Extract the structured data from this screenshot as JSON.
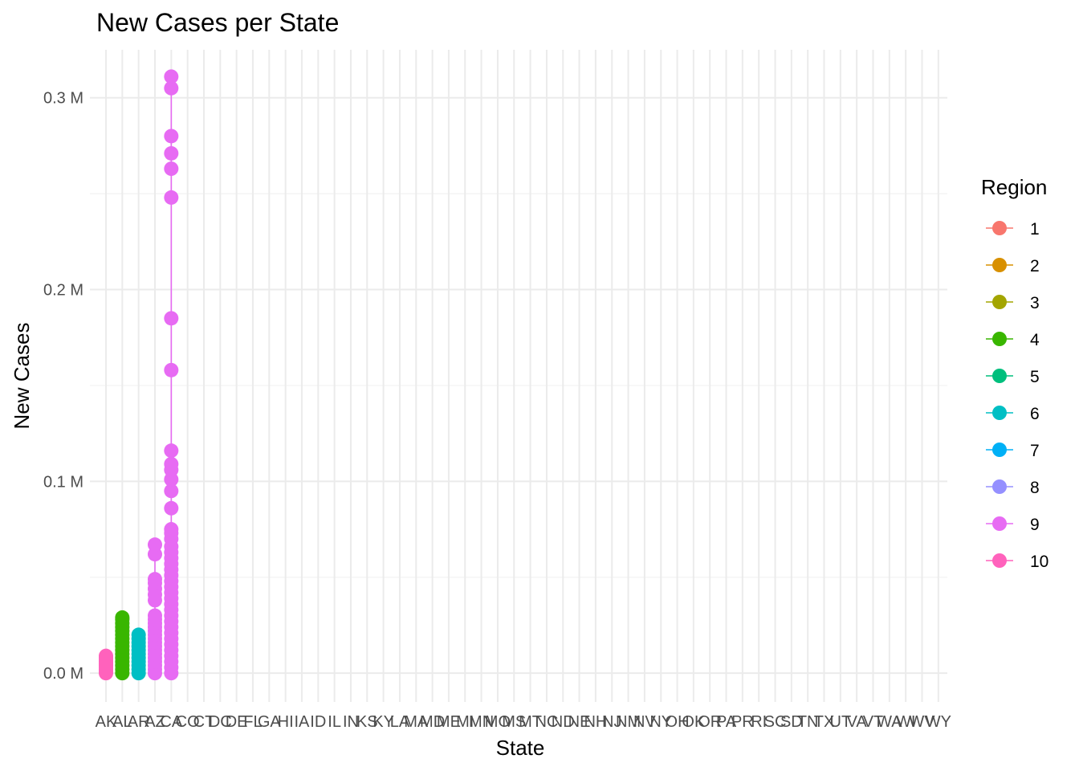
{
  "chart_data": {
    "type": "scatter",
    "title": "New Cases per State",
    "xlabel": "State",
    "ylabel": "New Cases",
    "categories": [
      "AK",
      "AL",
      "AR",
      "AZ",
      "CA",
      "CO",
      "CT",
      "DC",
      "DE",
      "FL",
      "GA",
      "HI",
      "IA",
      "ID",
      "IL",
      "IN",
      "KS",
      "KY",
      "LA",
      "MA",
      "MD",
      "ME",
      "MI",
      "MN",
      "MO",
      "MS",
      "MT",
      "NC",
      "ND",
      "NE",
      "NH",
      "NJ",
      "NM",
      "NV",
      "NY",
      "OH",
      "OK",
      "OR",
      "PA",
      "PR",
      "RI",
      "SC",
      "SD",
      "TN",
      "TX",
      "UT",
      "VA",
      "VT",
      "WA",
      "WI",
      "WV",
      "WY"
    ],
    "y_ticks": [
      0,
      0.1,
      0.2,
      0.3
    ],
    "y_tick_labels": [
      "0.0 M",
      "0.1 M",
      "0.2 M",
      "0.3 M"
    ],
    "y_unit": "M",
    "ylim": [
      -0.015,
      0.325
    ],
    "grid": true,
    "legend": {
      "title": "Region",
      "placement": "right",
      "entries": [
        {
          "label": "1",
          "color": "#F8766D"
        },
        {
          "label": "2",
          "color": "#D89000"
        },
        {
          "label": "3",
          "color": "#A3A500"
        },
        {
          "label": "4",
          "color": "#39B600"
        },
        {
          "label": "5",
          "color": "#00BF7D"
        },
        {
          "label": "6",
          "color": "#00BFC4"
        },
        {
          "label": "7",
          "color": "#00B0F6"
        },
        {
          "label": "8",
          "color": "#9590FF"
        },
        {
          "label": "9",
          "color": "#E76BF3"
        },
        {
          "label": "10",
          "color": "#FF62BC"
        }
      ]
    },
    "series": [
      {
        "category": "AK",
        "region": "10",
        "color": "#FF62BC",
        "values": [
          0,
          0.001,
          0.002,
          0.003,
          0.004,
          0.005,
          0.006,
          0.007,
          0.008,
          0.009
        ]
      },
      {
        "category": "AL",
        "region": "4",
        "color": "#39B600",
        "values": [
          0,
          0.002,
          0.004,
          0.006,
          0.008,
          0.01,
          0.012,
          0.014,
          0.016,
          0.018,
          0.02,
          0.022,
          0.024,
          0.026,
          0.028,
          0.029
        ]
      },
      {
        "category": "AR",
        "region": "6",
        "color": "#00BFC4",
        "values": [
          0,
          0.002,
          0.004,
          0.006,
          0.008,
          0.01,
          0.012,
          0.014,
          0.016,
          0.018,
          0.02
        ]
      },
      {
        "category": "AZ",
        "region": "9",
        "color": "#E76BF3",
        "values": [
          0,
          0.002,
          0.004,
          0.006,
          0.008,
          0.01,
          0.012,
          0.014,
          0.016,
          0.018,
          0.02,
          0.022,
          0.024,
          0.026,
          0.028,
          0.03,
          0.038,
          0.041,
          0.044,
          0.047,
          0.049,
          0.062,
          0.067
        ]
      },
      {
        "category": "CA",
        "region": "9",
        "color": "#E76BF3",
        "values": [
          0,
          0.003,
          0.006,
          0.009,
          0.012,
          0.015,
          0.018,
          0.021,
          0.024,
          0.027,
          0.03,
          0.033,
          0.036,
          0.039,
          0.042,
          0.045,
          0.048,
          0.051,
          0.054,
          0.057,
          0.06,
          0.063,
          0.066,
          0.07,
          0.073,
          0.075,
          0.086,
          0.095,
          0.101,
          0.106,
          0.109,
          0.116,
          0.158,
          0.185,
          0.248,
          0.263,
          0.271,
          0.28,
          0.305,
          0.311
        ]
      }
    ]
  }
}
